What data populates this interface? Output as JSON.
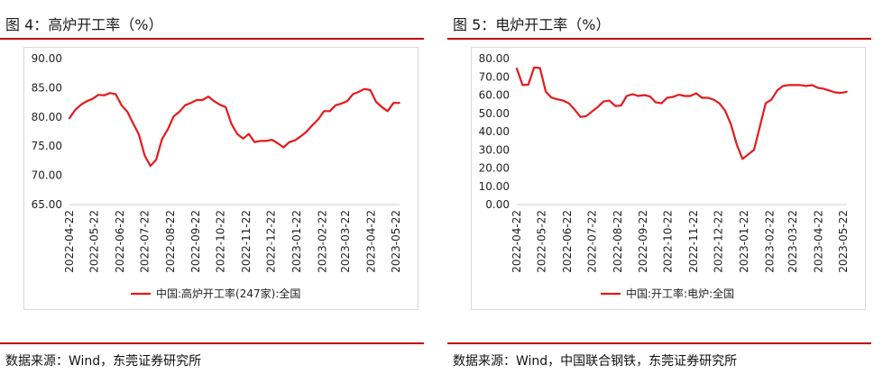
{
  "colors": {
    "accent": "#c00000",
    "series": "#e41a1c"
  },
  "panels": [
    {
      "title": "图 4：高炉开工率（%）",
      "source": "数据来源：Wind，东莞证券研究所",
      "chart_data": {
        "type": "line",
        "ylim": [
          65,
          90
        ],
        "yticks": [
          "65.00",
          "70.00",
          "75.00",
          "80.00",
          "85.00",
          "90.00"
        ],
        "xtick_labels": [
          "2022-04-22",
          "2022-05-22",
          "2022-06-22",
          "2022-07-22",
          "2022-08-22",
          "2022-09-22",
          "2022-10-22",
          "2022-11-22",
          "2022-12-22",
          "2023-01-22",
          "2023-02-22",
          "2023-03-22",
          "2023-04-22",
          "2023-05-22"
        ],
        "grid": false,
        "legend": "bottom",
        "series": [
          {
            "name": "中国:高炉开工率(247家):全国",
            "x": [
              "2022-04-22",
              "2022-04-29",
              "2022-05-06",
              "2022-05-13",
              "2022-05-20",
              "2022-05-27",
              "2022-06-03",
              "2022-06-10",
              "2022-06-17",
              "2022-06-24",
              "2022-07-01",
              "2022-07-08",
              "2022-07-15",
              "2022-07-22",
              "2022-07-29",
              "2022-08-05",
              "2022-08-12",
              "2022-08-19",
              "2022-08-26",
              "2022-09-02",
              "2022-09-09",
              "2022-09-16",
              "2022-09-23",
              "2022-09-30",
              "2022-10-07",
              "2022-10-14",
              "2022-10-21",
              "2022-10-28",
              "2022-11-04",
              "2022-11-11",
              "2022-11-18",
              "2022-11-25",
              "2022-12-02",
              "2022-12-09",
              "2022-12-16",
              "2022-12-23",
              "2022-12-30",
              "2023-01-06",
              "2023-01-13",
              "2023-01-20",
              "2023-01-27",
              "2023-02-03",
              "2023-02-10",
              "2023-02-17",
              "2023-02-24",
              "2023-03-03",
              "2023-03-10",
              "2023-03-17",
              "2023-03-24",
              "2023-03-31",
              "2023-04-07",
              "2023-04-14",
              "2023-04-21",
              "2023-04-28",
              "2023-05-05",
              "2023-05-12",
              "2023-05-19",
              "2023-05-26"
            ],
            "values": [
              79.8,
              81.2,
              82.1,
              82.7,
              83.1,
              83.8,
              83.7,
              84.1,
              83.9,
              82.0,
              80.9,
              78.9,
              77.0,
              73.4,
              71.6,
              72.7,
              76.2,
              77.9,
              80.1,
              80.9,
              82.0,
              82.4,
              82.9,
              82.9,
              83.5,
              82.7,
              82.1,
              81.7,
              78.8,
              77.1,
              76.3,
              77.1,
              75.7,
              75.9,
              75.9,
              76.1,
              75.5,
              74.8,
              75.7,
              76.0,
              76.7,
              77.5,
              78.6,
              79.6,
              81.0,
              81.0,
              82.0,
              82.3,
              82.7,
              83.9,
              84.3,
              84.8,
              84.6,
              82.6,
              81.7,
              81.0,
              82.4,
              82.4
            ]
          }
        ]
      }
    },
    {
      "title": "图 5：电炉开工率（%）",
      "source": "数据来源：Wind，中国联合钢铁，东莞证券研究所",
      "chart_data": {
        "type": "line",
        "ylim": [
          0,
          80
        ],
        "yticks": [
          "0.00",
          "10.00",
          "20.00",
          "30.00",
          "40.00",
          "50.00",
          "60.00",
          "70.00",
          "80.00"
        ],
        "xtick_labels": [
          "2022-04-22",
          "2022-05-22",
          "2022-06-22",
          "2022-07-22",
          "2022-08-22",
          "2022-09-22",
          "2022-10-22",
          "2022-11-22",
          "2022-12-22",
          "2023-01-22",
          "2023-02-22",
          "2023-03-22",
          "2023-04-22",
          "2023-05-22"
        ],
        "grid": false,
        "legend": "bottom",
        "series": [
          {
            "name": "中国:开工率:电炉:全国",
            "x": [
              "2022-04-22",
              "2022-04-29",
              "2022-05-06",
              "2022-05-13",
              "2022-05-20",
              "2022-05-27",
              "2022-06-03",
              "2022-06-10",
              "2022-06-17",
              "2022-06-24",
              "2022-07-01",
              "2022-07-08",
              "2022-07-15",
              "2022-07-22",
              "2022-07-29",
              "2022-08-05",
              "2022-08-12",
              "2022-08-19",
              "2022-08-26",
              "2022-09-02",
              "2022-09-09",
              "2022-09-16",
              "2022-09-23",
              "2022-09-30",
              "2022-10-07",
              "2022-10-14",
              "2022-10-21",
              "2022-10-28",
              "2022-11-04",
              "2022-11-11",
              "2022-11-18",
              "2022-11-25",
              "2022-12-02",
              "2022-12-09",
              "2022-12-16",
              "2022-12-23",
              "2022-12-30",
              "2023-01-06",
              "2023-01-13",
              "2023-01-20",
              "2023-01-27",
              "2023-02-03",
              "2023-02-10",
              "2023-02-17",
              "2023-02-24",
              "2023-03-03",
              "2023-03-10",
              "2023-03-17",
              "2023-03-24",
              "2023-03-31",
              "2023-04-07",
              "2023-04-14",
              "2023-04-21",
              "2023-04-28",
              "2023-05-05",
              "2023-05-12",
              "2023-05-19",
              "2023-05-26"
            ],
            "values": [
              74.5,
              65.5,
              65.7,
              75.1,
              74.8,
              61.9,
              58.6,
              57.7,
              57.0,
              55.5,
              52.0,
              48.0,
              48.5,
              51.0,
              53.5,
              56.5,
              57.0,
              54.0,
              54.2,
              59.5,
              60.5,
              59.5,
              60.0,
              59.3,
              56.0,
              55.5,
              58.5,
              59.0,
              60.2,
              59.5,
              59.5,
              61.0,
              58.5,
              58.5,
              57.5,
              55.5,
              51.5,
              44.0,
              33.0,
              25.0,
              27.5,
              30.0,
              42.5,
              55.5,
              57.5,
              62.5,
              65.0,
              65.5,
              65.5,
              65.5,
              65.0,
              65.5,
              64.0,
              63.5,
              62.5,
              61.5,
              61.2,
              61.8
            ]
          }
        ]
      }
    }
  ]
}
